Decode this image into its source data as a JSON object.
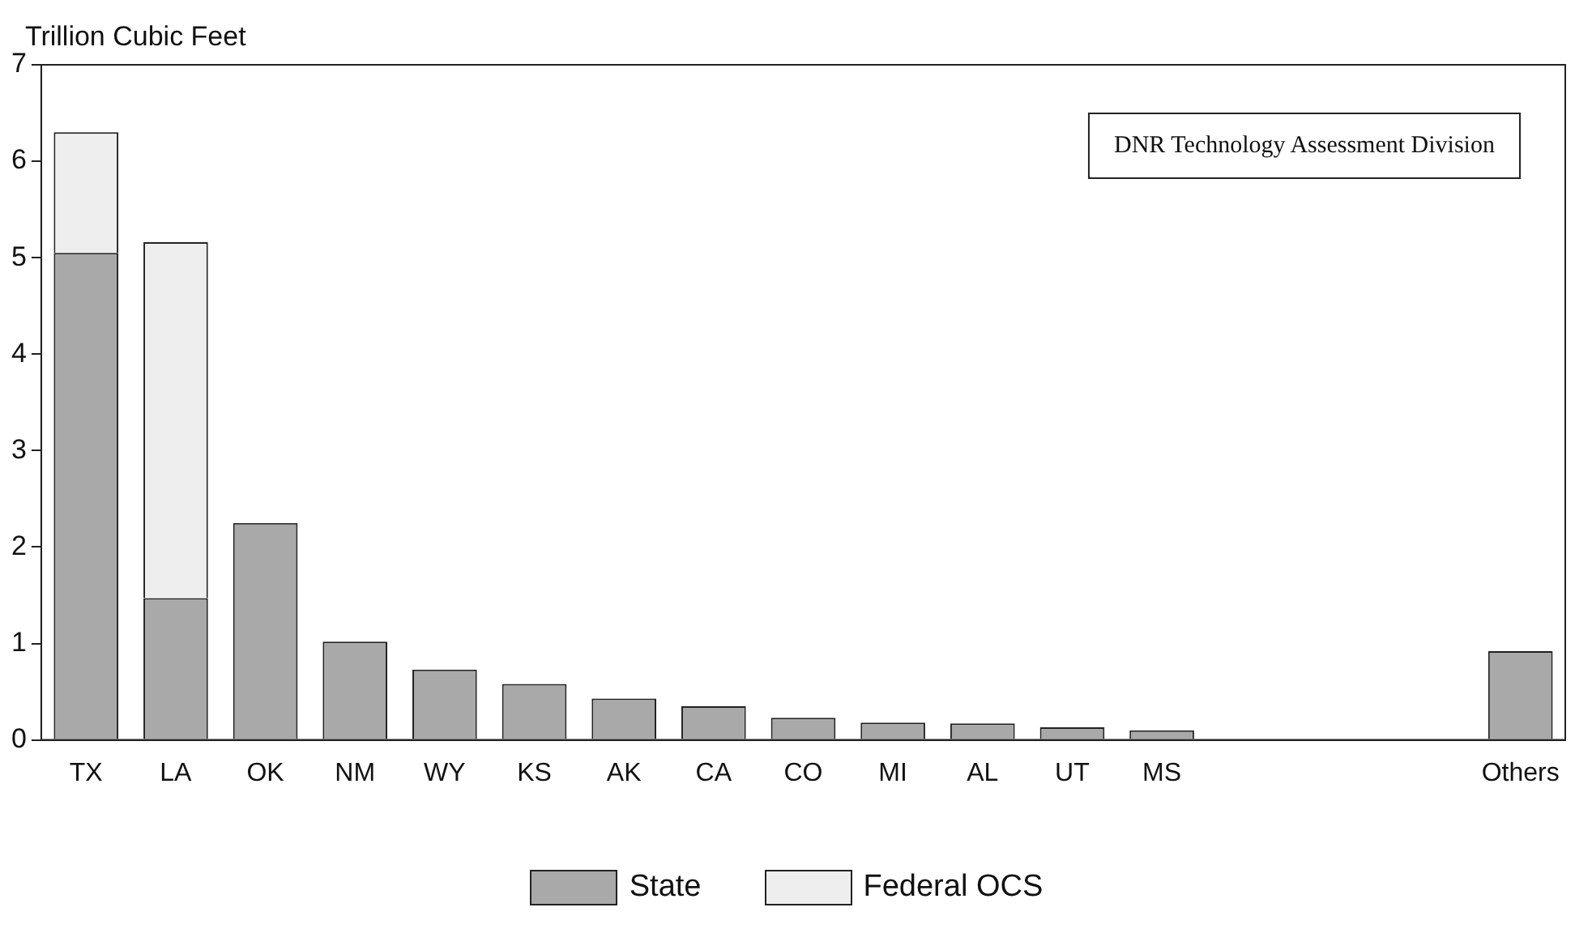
{
  "chart_data": {
    "type": "bar",
    "stacked": true,
    "ylabel": "Trillion Cubic Feet",
    "categories": [
      "TX",
      "LA",
      "OK",
      "NM",
      "WY",
      "KS",
      "AK",
      "CA",
      "CO",
      "MI",
      "AL",
      "UT",
      "MS",
      null,
      null,
      null,
      "Others"
    ],
    "series": [
      {
        "name": "State",
        "color": "#a9a9a9",
        "values": [
          5.05,
          1.47,
          2.25,
          1.02,
          0.73,
          0.58,
          0.43,
          0.35,
          0.23,
          0.18,
          0.17,
          0.13,
          0.1,
          null,
          null,
          null,
          0.92
        ]
      },
      {
        "name": "Federal OCS",
        "color": "#eeeeee",
        "values": [
          1.25,
          3.69,
          null,
          null,
          null,
          null,
          null,
          null,
          null,
          null,
          null,
          null,
          null,
          null,
          null,
          null,
          null
        ]
      }
    ],
    "ylim": [
      0,
      7
    ],
    "yticks": [
      0,
      1,
      2,
      3,
      4,
      5,
      6,
      7
    ],
    "legend": "bottom",
    "annotations": [
      "DNR Technology Assessment Division"
    ]
  }
}
